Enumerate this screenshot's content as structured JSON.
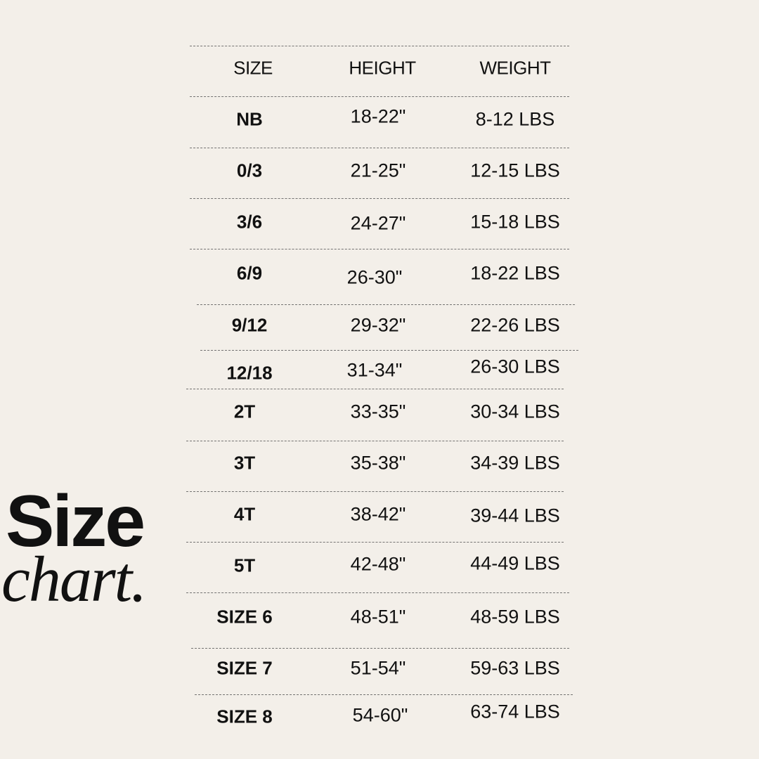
{
  "title": {
    "line1": "Size",
    "line2": "chart."
  },
  "table": {
    "headers": [
      "SIZE",
      "HEIGHT",
      "WEIGHT"
    ],
    "rows": [
      {
        "size": "NB",
        "height": "18-22\"",
        "weight": "8-12 LBS"
      },
      {
        "size": "0/3",
        "height": "21-25\"",
        "weight": "12-15 LBS"
      },
      {
        "size": "3/6",
        "height": "24-27\"",
        "weight": "15-18 LBS"
      },
      {
        "size": "6/9",
        "height": "26-30\"",
        "weight": "18-22 LBS"
      },
      {
        "size": "9/12",
        "height": "29-32\"",
        "weight": "22-26 LBS"
      },
      {
        "size": "12/18",
        "height": "31-34\"",
        "weight": "26-30 LBS"
      },
      {
        "size": "2T",
        "height": "33-35\"",
        "weight": "30-34 LBS"
      },
      {
        "size": "3T",
        "height": "35-38\"",
        "weight": "34-39 LBS"
      },
      {
        "size": "4T",
        "height": "38-42\"",
        "weight": "39-44 LBS"
      },
      {
        "size": "5T",
        "height": "42-48\"",
        "weight": "44-49 LBS"
      },
      {
        "size": "SIZE 6",
        "height": "48-51\"",
        "weight": "48-59 LBS"
      },
      {
        "size": "SIZE 7",
        "height": "51-54\"",
        "weight": "59-63 LBS"
      },
      {
        "size": "SIZE 8",
        "height": "54-60\"",
        "weight": "63-74 LBS"
      }
    ]
  },
  "colors": {
    "background": "#f3efe9",
    "text": "#111111"
  }
}
